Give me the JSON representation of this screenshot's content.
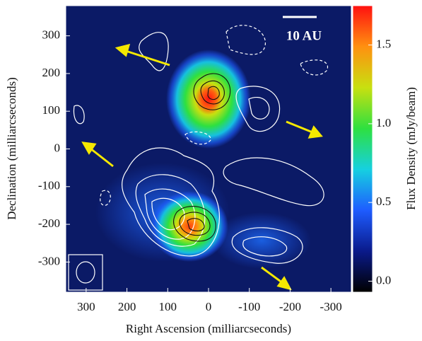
{
  "chart_data": {
    "type": "image",
    "x_label": "Right Ascension (milliarcseconds)",
    "y_label": "Declination (milliarcseconds)",
    "xlim": [
      350,
      -350
    ],
    "xticks": [
      300,
      200,
      100,
      0,
      -100,
      -200,
      -300
    ],
    "ylim": [
      -380,
      380
    ],
    "yticks": [
      300,
      200,
      100,
      0,
      -100,
      -200,
      -300
    ],
    "annotations": [
      "10 AU"
    ],
    "colorbar": {
      "label": "Flux Density (mJy/beam)",
      "lim": [
        -0.07,
        1.75
      ],
      "ticks": [
        {
          "value": 0,
          "label": "0.0"
        },
        0.5,
        {
          "value": 1,
          "label": "1.0"
        },
        1.5
      ],
      "colors": [
        "#000000",
        "#0a1a8a",
        "#1e5cff",
        "#16d0e0",
        "#2ee040",
        "#c8e010",
        "#ff9010",
        "#ff1010"
      ]
    }
  }
}
